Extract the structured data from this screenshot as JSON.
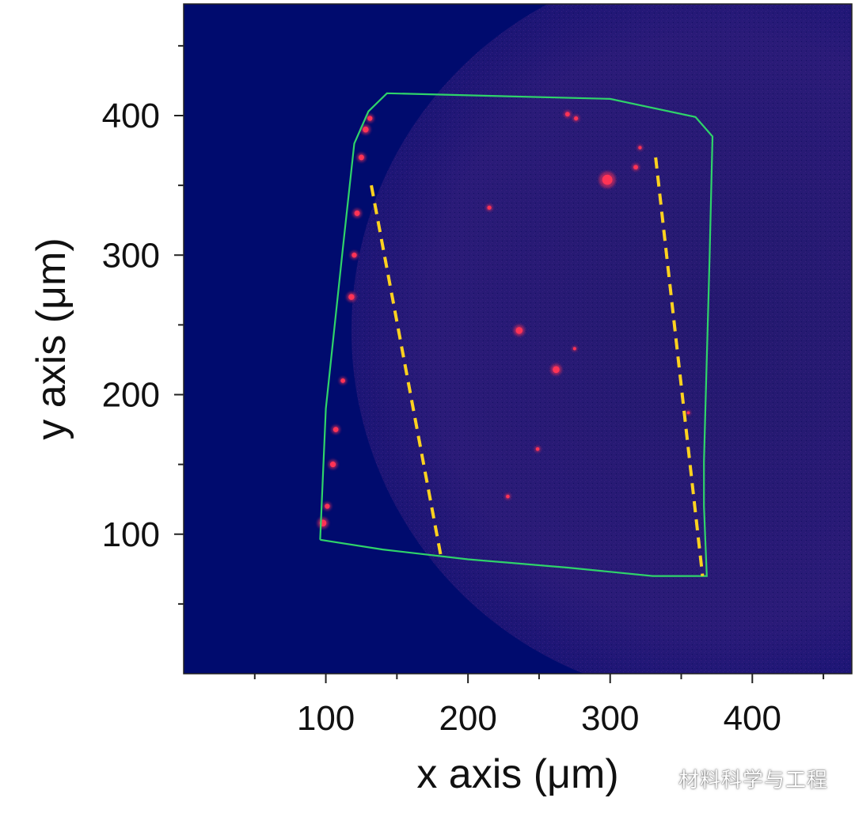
{
  "chart_data": {
    "type": "heatmap",
    "xlabel": "x axis (μm)",
    "ylabel": "y axis (μm)",
    "xlim": [
      0,
      470
    ],
    "ylim": [
      0,
      480
    ],
    "x_ticks": [
      100,
      200,
      300,
      400
    ],
    "y_ticks": [
      100,
      200,
      300,
      400
    ],
    "x_minor_ticks": [
      50,
      150,
      250,
      350,
      450
    ],
    "y_minor_ticks": [
      50,
      150,
      250,
      350,
      450
    ],
    "colors": {
      "background": "#000b6e",
      "disk": "#261a74",
      "hotspot": "#ff3355",
      "outline": "#2fd36a",
      "dashed_lines": "#ffd21f"
    },
    "disk": {
      "center": [
        378,
        246
      ],
      "radius": 260
    },
    "outline_polygon": [
      [
        96,
        96
      ],
      [
        100,
        190
      ],
      [
        112,
        305
      ],
      [
        120,
        380
      ],
      [
        130,
        403
      ],
      [
        143,
        416
      ],
      [
        300,
        412
      ],
      [
        360,
        399
      ],
      [
        372,
        385
      ],
      [
        370,
        300
      ],
      [
        366,
        152
      ],
      [
        366,
        120
      ],
      [
        368,
        70
      ],
      [
        330,
        70
      ],
      [
        270,
        76
      ],
      [
        200,
        82
      ],
      [
        140,
        89
      ],
      [
        96,
        96
      ]
    ],
    "dashed_lines": [
      {
        "from": [
          132,
          350
        ],
        "to": [
          181,
          84
        ]
      },
      {
        "from": [
          332,
          370
        ],
        "to": [
          365,
          70
        ]
      }
    ],
    "hotspots": [
      {
        "x": 298,
        "y": 354,
        "r": 4.5
      },
      {
        "x": 236,
        "y": 246,
        "r": 3
      },
      {
        "x": 262,
        "y": 218,
        "r": 3
      },
      {
        "x": 215,
        "y": 334,
        "r": 1.8
      },
      {
        "x": 249,
        "y": 161,
        "r": 1.6
      },
      {
        "x": 228,
        "y": 127,
        "r": 1.6
      },
      {
        "x": 275,
        "y": 233,
        "r": 1.4
      },
      {
        "x": 318,
        "y": 363,
        "r": 2
      },
      {
        "x": 270,
        "y": 401,
        "r": 2
      },
      {
        "x": 276,
        "y": 398,
        "r": 1.8
      },
      {
        "x": 321,
        "y": 377,
        "r": 1.5
      },
      {
        "x": 98,
        "y": 108,
        "r": 3
      },
      {
        "x": 101,
        "y": 120,
        "r": 2.2
      },
      {
        "x": 105,
        "y": 150,
        "r": 2.5
      },
      {
        "x": 107,
        "y": 175,
        "r": 2.3
      },
      {
        "x": 112,
        "y": 210,
        "r": 2
      },
      {
        "x": 118,
        "y": 270,
        "r": 2.6
      },
      {
        "x": 120,
        "y": 300,
        "r": 2.2
      },
      {
        "x": 122,
        "y": 330,
        "r": 2.4
      },
      {
        "x": 125,
        "y": 370,
        "r": 2.4
      },
      {
        "x": 128,
        "y": 390,
        "r": 2.6
      },
      {
        "x": 131,
        "y": 398,
        "r": 2.2
      },
      {
        "x": 355,
        "y": 187,
        "r": 1.3
      }
    ]
  },
  "watermark": {
    "text": "材料科学与工程",
    "icon": "wechat-icon"
  }
}
